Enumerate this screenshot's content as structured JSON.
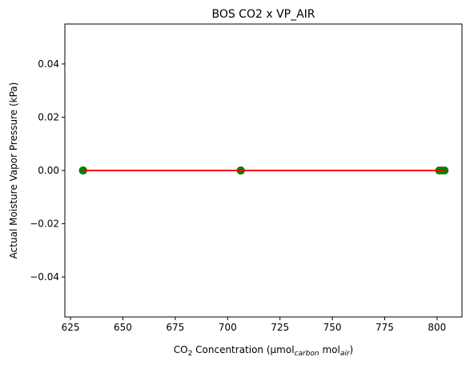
{
  "chart_data": {
    "type": "scatter",
    "title": "BOS CO2 x VP_AIR",
    "xlabel": {
      "prefix": "CO",
      "sub1": "2",
      "middle": " Concentration (µmol",
      "sub2": "carbon",
      "middle2": " mol",
      "sub3": "air",
      "suffix": ")"
    },
    "ylabel": "Actual Moisture Vapor Pressure (kPa)",
    "xlim": [
      622.3,
      811.9
    ],
    "ylim": [
      -0.055,
      0.055
    ],
    "xticks": [
      "625",
      "650",
      "675",
      "700",
      "725",
      "750",
      "775",
      "800"
    ],
    "xtick_values": [
      625,
      650,
      675,
      700,
      725,
      750,
      775,
      800
    ],
    "yticks": [
      "−0.04",
      "−0.02",
      "0.00",
      "0.02",
      "0.04"
    ],
    "ytick_values": [
      -0.04,
      -0.02,
      0.0,
      0.02,
      0.04
    ],
    "points": {
      "x": [
        630.9,
        631.1,
        706.2,
        706.4,
        801.0,
        802.3,
        803.6
      ],
      "y": [
        0,
        0,
        0,
        0,
        0,
        0,
        0
      ]
    },
    "fit_line": {
      "x": [
        630.9,
        803.6
      ],
      "y": [
        0,
        0
      ]
    },
    "point_color": "#008000",
    "line_color": "#ff0000",
    "grid": false
  }
}
